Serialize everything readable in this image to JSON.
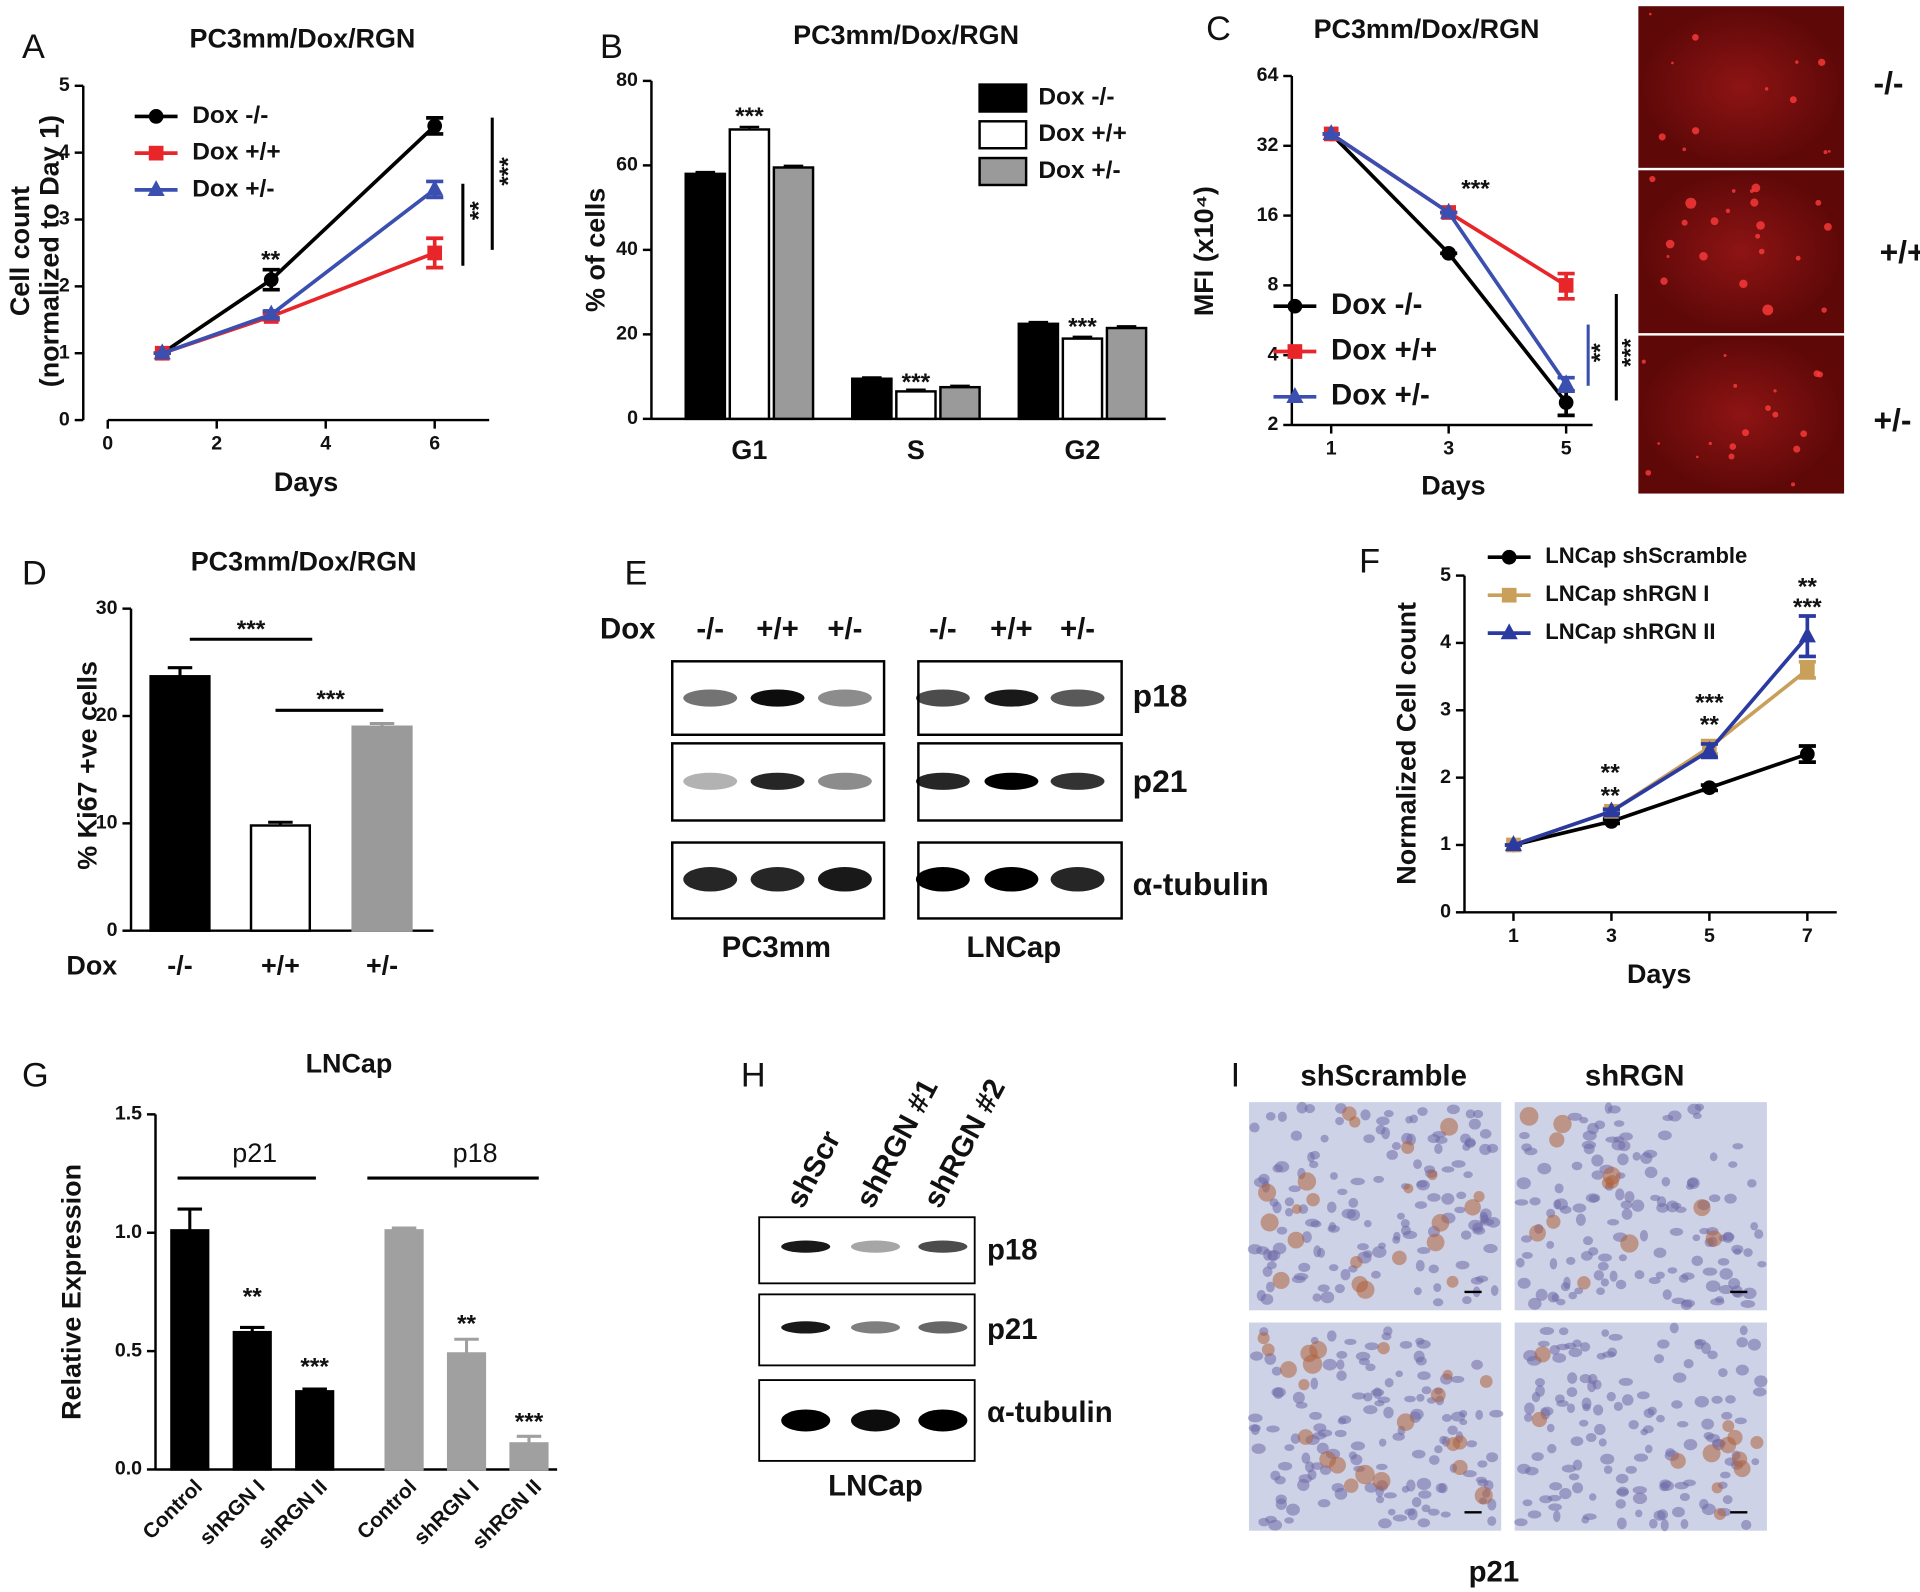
{
  "panel_labels": [
    "A",
    "B",
    "C",
    "D",
    "E",
    "F",
    "G",
    "H",
    "I"
  ],
  "chart_data": [
    {
      "type": "line",
      "title": "PC3mm/Dox/RGN",
      "xlabel": "Days",
      "ylabel": [
        "Cell count",
        "(normalized to Day 1)"
      ],
      "x": [
        1,
        3,
        6
      ],
      "xlim": [
        0,
        7
      ],
      "xticks": [
        0,
        2,
        4,
        6
      ],
      "ylim": [
        0,
        5
      ],
      "yticks": [
        0,
        1,
        2,
        3,
        4,
        5
      ],
      "series": [
        {
          "name": "Dox -/-",
          "color": "#000000",
          "marker": "circle",
          "values": [
            1,
            2.1,
            4.4
          ],
          "errors": [
            0,
            0.15,
            0.12
          ]
        },
        {
          "name": "Dox +/+",
          "color": "#e8262a",
          "marker": "square",
          "values": [
            1,
            1.55,
            2.5
          ],
          "errors": [
            0,
            0.05,
            0.22
          ]
        },
        {
          "name": "Dox +/-",
          "color": "#3a4fb0",
          "marker": "triangle",
          "values": [
            1,
            1.58,
            3.45
          ],
          "errors": [
            0,
            0.05,
            0.12
          ]
        }
      ],
      "annotations": [
        {
          "text": "**",
          "color": "#000000"
        },
        {
          "text": "**",
          "color": "#000000"
        },
        {
          "text": "***",
          "color": "#000000"
        }
      ]
    },
    {
      "type": "grouped_bar",
      "title": "PC3mm/Dox/RGN",
      "ylabel": "% of cells",
      "categories": [
        "G1",
        "S",
        "G2"
      ],
      "ylim": [
        0,
        80
      ],
      "yticks": [
        0,
        20,
        40,
        60,
        80
      ],
      "series": [
        {
          "name": "Dox -/-",
          "color": "#000000",
          "values": [
            58,
            9.5,
            22.5
          ],
          "errors": [
            0.4,
            0.3,
            0.4
          ]
        },
        {
          "name": "Dox +/+",
          "color": "#ffffff",
          "values": [
            68.5,
            6.5,
            19
          ],
          "errors": [
            0.6,
            0.4,
            0.4
          ]
        },
        {
          "name": "Dox +/-",
          "color": "#9a9a9a",
          "values": [
            59.5,
            7.5,
            21.5
          ],
          "errors": [
            0.4,
            0.3,
            0.4
          ]
        }
      ],
      "annotations": [
        {
          "text": "***",
          "color": "#000000"
        },
        {
          "text": "***",
          "color": "#000000"
        },
        {
          "text": "***",
          "color": "#000000"
        }
      ]
    },
    {
      "type": "line",
      "title": "PC3mm/Dox/RGN",
      "xlabel": "Days",
      "ylabel": "MFI (x10⁴)",
      "yscale": "log",
      "x": [
        1,
        3,
        5
      ],
      "xlim": [
        0.33,
        5.45
      ],
      "xticks": [
        1,
        3,
        5
      ],
      "ylim": [
        2,
        64
      ],
      "yticks": [
        2,
        4,
        8,
        16,
        32,
        64
      ],
      "series": [
        {
          "name": "Dox -/-",
          "color": "#000000",
          "marker": "circle",
          "values": [
            36,
            11,
            2.5
          ],
          "errors": [
            0,
            0,
            0.3
          ]
        },
        {
          "name": "Dox +/+",
          "color": "#e8262a",
          "marker": "square",
          "values": [
            36,
            16.5,
            8
          ],
          "errors": [
            0,
            0,
            1
          ]
        },
        {
          "name": "Dox +/-",
          "color": "#3a4fb0",
          "marker": "triangle",
          "values": [
            36,
            16.5,
            3
          ],
          "errors": [
            0,
            0,
            0.2
          ]
        }
      ],
      "annotations": [
        {
          "text": "***",
          "color": "#000000"
        },
        {
          "text": "**",
          "color": "#3a4fb0"
        },
        {
          "text": "***",
          "color": "#000000"
        }
      ]
    },
    {
      "type": "bar",
      "title": "PC3mm/Dox/RGN",
      "ylabel": "% Ki67 +ve cells",
      "xlabel": "Dox",
      "categories": [
        "-/-",
        "+/+",
        "+/-"
      ],
      "values": [
        23.7,
        9.8,
        19
      ],
      "errors": [
        0.8,
        0.3,
        0.3
      ],
      "colors": [
        "#000000",
        "#ffffff",
        "#9a9a9a"
      ],
      "ylim": [
        0,
        30
      ],
      "yticks": [
        0,
        10,
        20,
        30
      ],
      "annotations": [
        {
          "text": "***",
          "color": "#000000"
        },
        {
          "text": "***",
          "color": "#000000"
        }
      ]
    },
    {
      "type": "line",
      "xlabel": "Days",
      "ylabel": "Normalized Cell count",
      "x": [
        1,
        3,
        5,
        7
      ],
      "xlim": [
        0,
        7.6
      ],
      "xticks": [
        1,
        3,
        5,
        7
      ],
      "ylim": [
        0,
        5
      ],
      "yticks": [
        0,
        1,
        2,
        3,
        4,
        5
      ],
      "series": [
        {
          "name": "LNCap shScramble",
          "color": "#000000",
          "marker": "circle",
          "values": [
            1,
            1.35,
            1.85,
            2.35
          ],
          "errors": [
            0,
            0.03,
            0.04,
            0.12
          ]
        },
        {
          "name": "LNCap shRGN I",
          "color": "#c9a05a",
          "marker": "square",
          "values": [
            1,
            1.5,
            2.45,
            3.6
          ],
          "errors": [
            0,
            0.04,
            0.1,
            0.12
          ]
        },
        {
          "name": "LNCap shRGN II",
          "color": "#2b3aa0",
          "marker": "triangle",
          "values": [
            1,
            1.5,
            2.4,
            4.1
          ],
          "errors": [
            0,
            0.03,
            0.1,
            0.3
          ]
        }
      ],
      "annotations": [
        {
          "text": "**",
          "color": "#2b3aa0"
        },
        {
          "text": "**",
          "color": "#c9a05a"
        },
        {
          "text": "***",
          "color": "#2b3aa0"
        },
        {
          "text": "**",
          "color": "#c9a05a"
        },
        {
          "text": "**",
          "color": "#2b3aa0"
        },
        {
          "text": "***",
          "color": "#c9a05a"
        }
      ]
    },
    {
      "type": "bar",
      "title": "LNCap",
      "ylabel": "Relative Expression",
      "categories": [
        "Control",
        "shRGN I",
        "shRGN II",
        "Control",
        "shRGN I",
        "shRGN II"
      ],
      "values": [
        1.01,
        0.58,
        0.33,
        1.01,
        0.49,
        0.11
      ],
      "errors": [
        0.09,
        0.02,
        0.01,
        0.01,
        0.06,
        0.03
      ],
      "colors": [
        "#000000",
        "#000000",
        "#000000",
        "#a0a0a0",
        "#a0a0a0",
        "#a0a0a0"
      ],
      "groups": [
        "p21",
        "p18"
      ],
      "ylim": [
        0,
        1.5
      ],
      "yticks": [
        {
          "value": 0,
          "label": "0.0"
        },
        {
          "value": 0.5,
          "label": "0.5"
        },
        {
          "value": 1,
          "label": "1.0"
        },
        {
          "value": 1.5,
          "label": "1.5"
        }
      ],
      "annotations": [
        {
          "text": "**",
          "color": "#000000"
        },
        {
          "text": "***",
          "color": "#000000"
        },
        {
          "text": "**",
          "color": "#a0a0a0"
        },
        {
          "text": "***",
          "color": "#a0a0a0"
        }
      ]
    }
  ],
  "panel_c_image": {
    "labels": [
      "-/-",
      "+/+",
      "+/-"
    ]
  },
  "blot_e": {
    "treatment_label": "Dox",
    "lanes": [
      "-/-",
      "+/+",
      "+/-",
      "-/-",
      "+/+",
      "+/-"
    ],
    "proteins": [
      "p18",
      "p21",
      "α-tubulin"
    ],
    "cell_lines": [
      "PC3mm",
      "LNCap"
    ]
  },
  "blot_h": {
    "lanes": [
      "shScr",
      "shRGN #1",
      "shRGN #2"
    ],
    "proteins": [
      "p18",
      "p21",
      "α-tubulin"
    ],
    "cell_line": "LNCap"
  },
  "ihc_i": {
    "columns": [
      "shScramble",
      "shRGN"
    ],
    "stain": "p21"
  }
}
